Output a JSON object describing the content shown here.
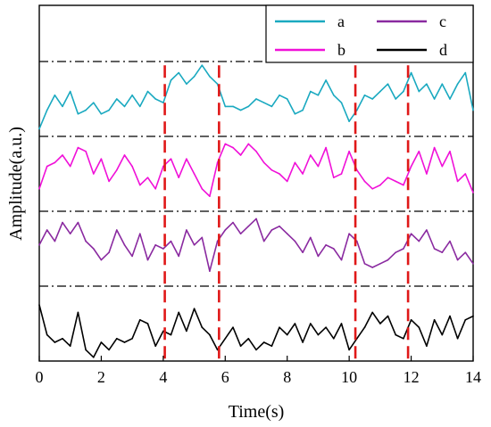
{
  "chart_data": {
    "type": "line",
    "title": "",
    "xlabel": "Time(s)",
    "ylabel": "Amplitude(a.u.)",
    "xlim": [
      0,
      14
    ],
    "x_ticks": [
      0,
      2,
      4,
      6,
      8,
      10,
      12,
      14
    ],
    "y_ticks": [],
    "series": [
      {
        "name": "a",
        "color": "#1aa9c0",
        "band": [
          3.0,
          4.0
        ],
        "x": [
          0,
          0.25,
          0.5,
          0.75,
          1,
          1.25,
          1.5,
          1.75,
          2,
          2.25,
          2.5,
          2.75,
          3,
          3.25,
          3.5,
          3.75,
          4,
          4.25,
          4.5,
          4.75,
          5,
          5.25,
          5.5,
          5.75,
          6,
          6.25,
          6.5,
          6.75,
          7,
          7.25,
          7.5,
          7.75,
          8,
          8.25,
          8.5,
          8.75,
          9,
          9.25,
          9.5,
          9.75,
          10,
          10.25,
          10.5,
          10.75,
          11,
          11.25,
          11.5,
          11.75,
          12,
          12.25,
          12.5,
          12.75,
          13,
          13.25,
          13.5,
          13.75,
          14
        ],
        "values": [
          0.1,
          0.35,
          0.55,
          0.4,
          0.6,
          0.3,
          0.35,
          0.45,
          0.3,
          0.35,
          0.5,
          0.4,
          0.55,
          0.4,
          0.6,
          0.5,
          0.45,
          0.75,
          0.85,
          0.7,
          0.8,
          0.95,
          0.8,
          0.7,
          0.4,
          0.4,
          0.35,
          0.4,
          0.5,
          0.45,
          0.4,
          0.55,
          0.5,
          0.3,
          0.35,
          0.6,
          0.55,
          0.75,
          0.55,
          0.45,
          0.2,
          0.35,
          0.55,
          0.5,
          0.6,
          0.7,
          0.5,
          0.6,
          0.85,
          0.6,
          0.7,
          0.5,
          0.7,
          0.5,
          0.7,
          0.85,
          0.35
        ]
      },
      {
        "name": "b",
        "color": "#f010d8",
        "band": [
          2.0,
          3.0
        ],
        "x": [
          0,
          0.25,
          0.5,
          0.75,
          1,
          1.25,
          1.5,
          1.75,
          2,
          2.25,
          2.5,
          2.75,
          3,
          3.25,
          3.5,
          3.75,
          4,
          4.25,
          4.5,
          4.75,
          5,
          5.25,
          5.5,
          5.75,
          6,
          6.25,
          6.5,
          6.75,
          7,
          7.25,
          7.5,
          7.75,
          8,
          8.25,
          8.5,
          8.75,
          9,
          9.25,
          9.5,
          9.75,
          10,
          10.25,
          10.5,
          10.75,
          11,
          11.25,
          11.5,
          11.75,
          12,
          12.25,
          12.5,
          12.75,
          13,
          13.25,
          13.5,
          13.75,
          14
        ],
        "values": [
          0.3,
          0.6,
          0.65,
          0.75,
          0.6,
          0.85,
          0.8,
          0.5,
          0.7,
          0.4,
          0.55,
          0.75,
          0.6,
          0.35,
          0.45,
          0.3,
          0.6,
          0.7,
          0.45,
          0.7,
          0.5,
          0.3,
          0.2,
          0.65,
          0.9,
          0.85,
          0.75,
          0.9,
          0.8,
          0.65,
          0.55,
          0.5,
          0.4,
          0.65,
          0.5,
          0.75,
          0.6,
          0.85,
          0.45,
          0.5,
          0.8,
          0.55,
          0.4,
          0.3,
          0.35,
          0.45,
          0.4,
          0.35,
          0.6,
          0.8,
          0.5,
          0.85,
          0.6,
          0.8,
          0.4,
          0.5,
          0.25
        ]
      },
      {
        "name": "c",
        "color": "#8a2aa0",
        "band": [
          1.0,
          2.0
        ],
        "x": [
          0,
          0.25,
          0.5,
          0.75,
          1,
          1.25,
          1.5,
          1.75,
          2,
          2.25,
          2.5,
          2.75,
          3,
          3.25,
          3.5,
          3.75,
          4,
          4.25,
          4.5,
          4.75,
          5,
          5.25,
          5.5,
          5.75,
          6,
          6.25,
          6.5,
          6.75,
          7,
          7.25,
          7.5,
          7.75,
          8,
          8.25,
          8.5,
          8.75,
          9,
          9.25,
          9.5,
          9.75,
          10,
          10.25,
          10.5,
          10.75,
          11,
          11.25,
          11.5,
          11.75,
          12,
          12.25,
          12.5,
          12.75,
          13,
          13.25,
          13.5,
          13.75,
          14
        ],
        "values": [
          0.55,
          0.75,
          0.6,
          0.85,
          0.7,
          0.85,
          0.6,
          0.5,
          0.35,
          0.45,
          0.75,
          0.55,
          0.4,
          0.7,
          0.35,
          0.55,
          0.5,
          0.6,
          0.4,
          0.75,
          0.55,
          0.65,
          0.2,
          0.6,
          0.75,
          0.85,
          0.7,
          0.8,
          0.9,
          0.6,
          0.75,
          0.8,
          0.7,
          0.6,
          0.45,
          0.65,
          0.4,
          0.55,
          0.5,
          0.35,
          0.7,
          0.6,
          0.3,
          0.25,
          0.3,
          0.35,
          0.45,
          0.5,
          0.7,
          0.6,
          0.75,
          0.5,
          0.45,
          0.6,
          0.35,
          0.45,
          0.3
        ]
      },
      {
        "name": "d",
        "color": "#000000",
        "band": [
          0.0,
          1.0
        ],
        "x": [
          0,
          0.25,
          0.5,
          0.75,
          1,
          1.25,
          1.5,
          1.75,
          2,
          2.25,
          2.5,
          2.75,
          3,
          3.25,
          3.5,
          3.75,
          4,
          4.25,
          4.5,
          4.75,
          5,
          5.25,
          5.5,
          5.75,
          6,
          6.25,
          6.5,
          6.75,
          7,
          7.25,
          7.5,
          7.75,
          8,
          8.25,
          8.5,
          8.75,
          9,
          9.25,
          9.5,
          9.75,
          10,
          10.25,
          10.5,
          10.75,
          11,
          11.25,
          11.5,
          11.75,
          12,
          12.25,
          12.5,
          12.75,
          13,
          13.25,
          13.5,
          13.75,
          14
        ],
        "values": [
          0.75,
          0.35,
          0.25,
          0.3,
          0.2,
          0.65,
          0.15,
          0.05,
          0.25,
          0.15,
          0.3,
          0.25,
          0.3,
          0.55,
          0.5,
          0.2,
          0.4,
          0.35,
          0.65,
          0.4,
          0.7,
          0.45,
          0.35,
          0.15,
          0.3,
          0.45,
          0.2,
          0.3,
          0.15,
          0.25,
          0.2,
          0.45,
          0.35,
          0.5,
          0.25,
          0.5,
          0.35,
          0.45,
          0.3,
          0.5,
          0.15,
          0.3,
          0.45,
          0.65,
          0.5,
          0.6,
          0.35,
          0.3,
          0.55,
          0.45,
          0.2,
          0.55,
          0.35,
          0.6,
          0.3,
          0.55,
          0.6
        ]
      }
    ],
    "separators_y": [
      1,
      2,
      3,
      4
    ],
    "event_lines_x": [
      4.05,
      5.8,
      10.2,
      11.9
    ],
    "ylim": [
      0,
      4.75
    ],
    "legend": {
      "placement": "top-right",
      "columns": 2,
      "order": [
        "a",
        "c",
        "b",
        "d"
      ]
    },
    "grid": false,
    "colors": {
      "separator": "#000000",
      "event_line": "#e01818",
      "axis": "#000000"
    }
  }
}
